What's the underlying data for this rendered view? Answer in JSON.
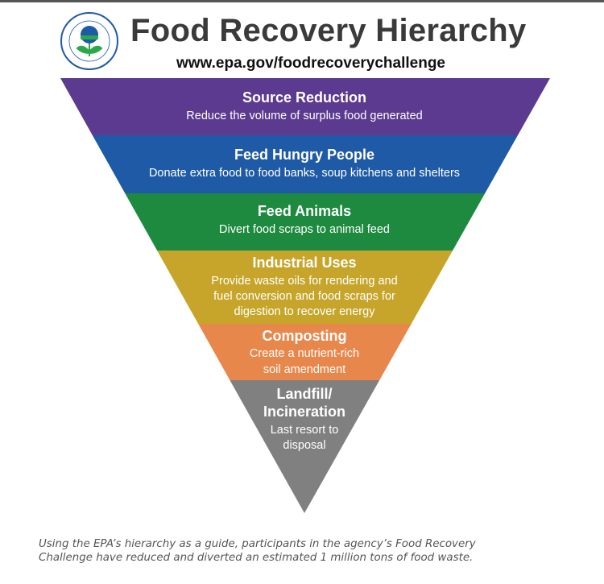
{
  "header": {
    "title": "Food Recovery Hierarchy",
    "url": "www.epa.gov/foodrecoverychallenge",
    "logo_text": "UNITED STATES ENVIRONMENTAL PROTECTION AGENCY"
  },
  "levels": [
    {
      "title": "Source Reduction",
      "lines": [
        "Reduce the volume of surplus food generated"
      ],
      "color": "#5b3a8f"
    },
    {
      "title": "Feed Hungry People",
      "lines": [
        "Donate extra food to food banks, soup kitchens and shelters"
      ],
      "color": "#1f5aa6"
    },
    {
      "title": "Feed Animals",
      "lines": [
        "Divert food scraps to animal feed"
      ],
      "color": "#1d8a3f"
    },
    {
      "title": "Industrial Uses",
      "lines": [
        "Provide waste oils for rendering and",
        "fuel conversion and food scraps for",
        "digestion to recover energy"
      ],
      "color": "#c6a52a"
    },
    {
      "title": "Composting",
      "lines": [
        "Create a nutrient-rich",
        "soil amendment"
      ],
      "color": "#e8874b"
    },
    {
      "title_lines": [
        "Landfill/",
        "Incineration"
      ],
      "lines": [
        "Last resort to",
        "disposal"
      ],
      "color": "#808080"
    }
  ],
  "caption": [
    "Using the EPA’s hierarchy as a guide, participants in the agency’s Food Recovery",
    "Challenge have reduced and diverted an estimated 1 million tons of food waste."
  ]
}
